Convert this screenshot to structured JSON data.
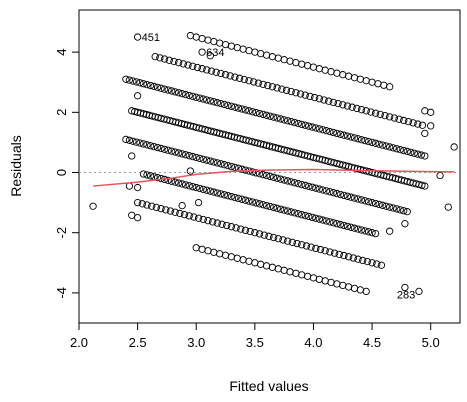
{
  "chart_data": {
    "type": "scatter",
    "title": "",
    "xlabel": "Fitted values",
    "ylabel": "Residuals",
    "xlim": [
      2.0,
      5.25
    ],
    "ylim": [
      -5.0,
      5.4
    ],
    "x_ticks": [
      2.0,
      2.5,
      3.0,
      3.5,
      4.0,
      4.5,
      5.0
    ],
    "x_tick_labels": [
      "2.0",
      "2.5",
      "3.0",
      "3.5",
      "4.0",
      "4.5",
      "5.0"
    ],
    "y_ticks": [
      -4,
      -2,
      0,
      2,
      4
    ],
    "y_tick_labels": [
      "-4",
      "-2",
      "0",
      "2",
      "4"
    ],
    "grid": false,
    "reference_line_y": 0,
    "bands": [
      {
        "intercept": 8.5,
        "x_range": [
          2.95,
          4.65
        ],
        "spacing": 0.05
      },
      {
        "intercept": 7.5,
        "x_range": [
          2.65,
          4.95
        ],
        "spacing": 0.04
      },
      {
        "intercept": 6.5,
        "x_range": [
          2.4,
          4.95
        ],
        "spacing": 0.03
      },
      {
        "intercept": 5.5,
        "x_range": [
          2.45,
          4.95
        ],
        "spacing": 0.025
      },
      {
        "intercept": 4.5,
        "x_range": [
          2.4,
          4.8
        ],
        "spacing": 0.03
      },
      {
        "intercept": 3.5,
        "x_range": [
          2.55,
          4.55
        ],
        "spacing": 0.03
      },
      {
        "intercept": 2.5,
        "x_range": [
          2.5,
          4.6
        ],
        "spacing": 0.04
      },
      {
        "intercept": 1.5,
        "x_range": [
          3.0,
          4.45
        ],
        "spacing": 0.05
      }
    ],
    "extra_points": [
      [
        2.12,
        -1.12
      ],
      [
        2.45,
        -1.42
      ],
      [
        2.5,
        -1.5
      ],
      [
        2.45,
        0.55
      ],
      [
        2.5,
        2.55
      ],
      [
        2.43,
        -0.45
      ],
      [
        2.5,
        -0.5
      ],
      [
        2.88,
        -1.1
      ],
      [
        2.95,
        0.05
      ],
      [
        3.02,
        -1.0
      ],
      [
        3.05,
        4.0
      ],
      [
        3.12,
        3.88
      ],
      [
        2.5,
        4.5
      ],
      [
        4.78,
        -3.82
      ],
      [
        4.78,
        -1.7
      ],
      [
        4.65,
        -1.95
      ],
      [
        4.9,
        -3.95
      ],
      [
        5.0,
        1.55
      ],
      [
        4.95,
        1.3
      ],
      [
        5.08,
        -0.1
      ],
      [
        5.15,
        -1.15
      ],
      [
        5.2,
        0.85
      ],
      [
        4.95,
        2.05
      ],
      [
        5.0,
        2.0
      ]
    ],
    "annotations": [
      {
        "label": "451",
        "x": 2.5,
        "y": 4.5
      },
      {
        "label": "634",
        "x": 3.05,
        "y": 4.0
      },
      {
        "label": "283",
        "x": 4.78,
        "y": -3.82
      }
    ],
    "smoother": {
      "color": "#e8545a",
      "x": [
        2.12,
        2.5,
        2.8,
        3.0,
        3.3,
        3.6,
        4.0,
        4.5,
        5.0,
        5.2
      ],
      "y": [
        -0.45,
        -0.32,
        -0.18,
        -0.06,
        0.04,
        0.08,
        0.1,
        0.06,
        0.03,
        0.02
      ]
    }
  }
}
